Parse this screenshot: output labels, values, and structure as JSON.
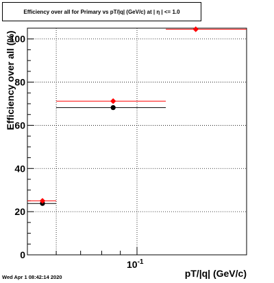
{
  "header": {
    "title": "Efficiency over all for Primary vs pT/|q| (GeV/c) at | η | <= 1.0"
  },
  "footer": {
    "timestamp": "Wed Apr  1 08:42:14 2020"
  },
  "chart_data": {
    "type": "scatter",
    "title": "Efficiency over all for Primary vs pT/|q| (GeV/c) at | η | <= 1.0",
    "xlabel": "pT/|q| (GeV/c)",
    "ylabel": "Efficiency over all (%)",
    "xscale": "log",
    "xlim": [
      0.05,
      0.2
    ],
    "ylim": [
      0,
      105
    ],
    "grid": true,
    "x_tick_labels": [
      {
        "value": 0.1,
        "base": "10",
        "exp": "-1"
      }
    ],
    "y_ticks": [
      0,
      20,
      40,
      60,
      80,
      100
    ],
    "series": [
      {
        "marker": "circle",
        "color": "#000000",
        "points": [
          {
            "x": 0.055,
            "xlo": 0.05,
            "xhi": 0.06,
            "y": 23.8
          },
          {
            "x": 0.086,
            "xlo": 0.06,
            "xhi": 0.12,
            "y": 68.2
          }
        ]
      },
      {
        "marker": "diamond",
        "color": "#ff0000",
        "points": [
          {
            "x": 0.055,
            "xlo": 0.05,
            "xhi": 0.06,
            "y": 25.0
          },
          {
            "x": 0.086,
            "xlo": 0.06,
            "xhi": 0.12,
            "y": 71.2
          },
          {
            "x": 0.145,
            "xlo": 0.12,
            "xhi": 0.2,
            "y": 104.5
          }
        ]
      }
    ]
  }
}
